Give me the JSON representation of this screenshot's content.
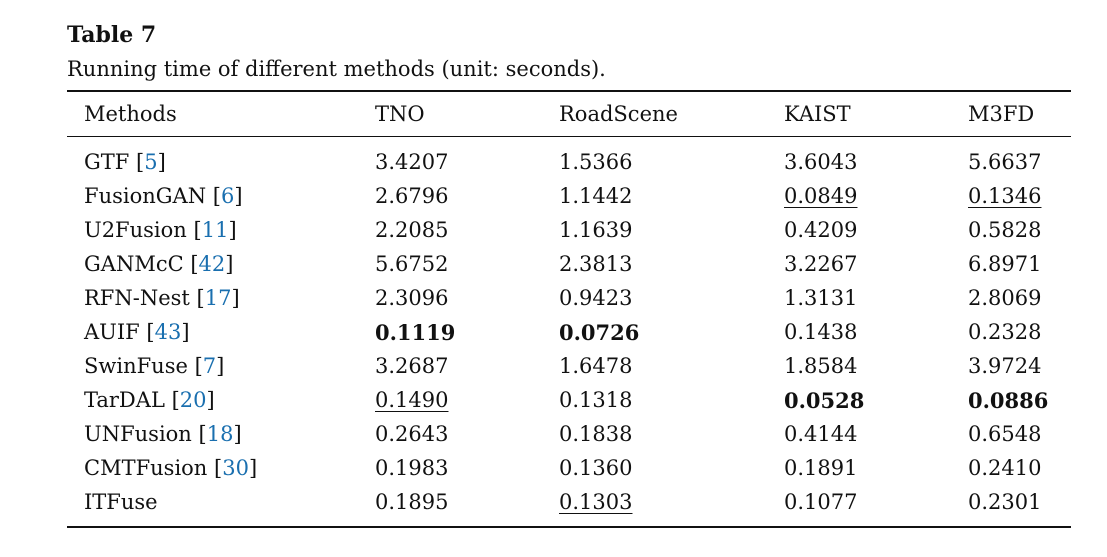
{
  "caption": {
    "label": "Table 7",
    "text": "Running time of different methods (unit: seconds)."
  },
  "table": {
    "columns": [
      "Methods",
      "TNO",
      "RoadScene",
      "KAIST",
      "M3FD"
    ],
    "rows": [
      {
        "method": "GTF",
        "ref": "5",
        "tno": "3.4207",
        "roadscene": "1.5366",
        "kaist": "3.6043",
        "m3fd": "5.6637"
      },
      {
        "method": "FusionGAN",
        "ref": "6",
        "tno": "2.6796",
        "roadscene": "1.1442",
        "kaist": "0.0849",
        "m3fd": "0.1346"
      },
      {
        "method": "U2Fusion",
        "ref": "11",
        "tno": "2.2085",
        "roadscene": "1.1639",
        "kaist": "0.4209",
        "m3fd": "0.5828"
      },
      {
        "method": "GANMcC",
        "ref": "42",
        "tno": "5.6752",
        "roadscene": "2.3813",
        "kaist": "3.2267",
        "m3fd": "6.8971"
      },
      {
        "method": "RFN-Nest",
        "ref": "17",
        "tno": "2.3096",
        "roadscene": "0.9423",
        "kaist": "1.3131",
        "m3fd": "2.8069"
      },
      {
        "method": "AUIF",
        "ref": "43",
        "tno": "0.1119",
        "roadscene": "0.0726",
        "kaist": "0.1438",
        "m3fd": "0.2328"
      },
      {
        "method": "SwinFuse",
        "ref": "7",
        "tno": "3.2687",
        "roadscene": "1.6478",
        "kaist": "1.8584",
        "m3fd": "3.9724"
      },
      {
        "method": "TarDAL",
        "ref": "20",
        "tno": "0.1490",
        "roadscene": "0.1318",
        "kaist": "0.0528",
        "m3fd": "0.0886"
      },
      {
        "method": "UNFusion",
        "ref": "18",
        "tno": "0.2643",
        "roadscene": "0.1838",
        "kaist": "0.4144",
        "m3fd": "0.6548"
      },
      {
        "method": "CMTFusion",
        "ref": "30",
        "tno": "0.1983",
        "roadscene": "0.1360",
        "kaist": "0.1891",
        "m3fd": "0.2410"
      },
      {
        "method": "ITFuse",
        "ref": "",
        "tno": "0.1895",
        "roadscene": "0.1303",
        "kaist": "0.1077",
        "m3fd": "0.2301"
      }
    ],
    "emphasis": {
      "bold": [
        "AUIF.tno",
        "AUIF.roadscene",
        "TarDAL.kaist",
        "TarDAL.m3fd"
      ],
      "underline": [
        "FusionGAN.kaist",
        "FusionGAN.m3fd",
        "TarDAL.tno",
        "ITFuse.roadscene"
      ]
    },
    "colors": {
      "citation_link": "#1a6faf",
      "text": "#111111",
      "rule": "#111111"
    }
  }
}
